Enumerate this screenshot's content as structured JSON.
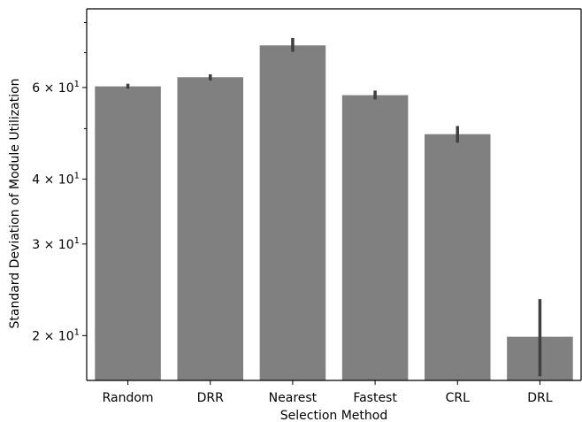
{
  "chart_data": {
    "type": "bar",
    "xlabel": "Selection Method",
    "ylabel": "Standard Deviation of Module Utilization",
    "yscale": "log",
    "ylim": [
      16.4,
      85
    ],
    "categories": [
      "Random",
      "DRR",
      "Nearest",
      "Fastest",
      "CRL",
      "DRL"
    ],
    "values": [
      60.3,
      62.8,
      72.3,
      58.0,
      48.8,
      19.9
    ],
    "error_low": [
      59.7,
      61.9,
      70.3,
      56.9,
      47.0,
      16.7
    ],
    "error_high": [
      61.0,
      63.6,
      74.7,
      59.2,
      50.6,
      23.5
    ],
    "y_major_ticks": [
      {
        "value": 20,
        "label_base": "2 × 10",
        "label_exp": "1"
      },
      {
        "value": 30,
        "label_base": "3 × 10",
        "label_exp": "1"
      },
      {
        "value": 40,
        "label_base": "4 × 10",
        "label_exp": "1"
      },
      {
        "value": 60,
        "label_base": "6 × 10",
        "label_exp": "1"
      }
    ],
    "y_minor_ticks": [
      50,
      70,
      80
    ],
    "grid": false,
    "legend": "none",
    "bar_color": "#808080",
    "error_color": "#404040"
  }
}
